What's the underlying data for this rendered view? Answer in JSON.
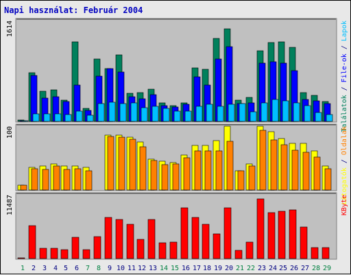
{
  "title": "Napi használat: Február 2004",
  "colors": {
    "background": "#e8e8e8",
    "panel": "#c0c0c0",
    "title": "#0000c0",
    "weekday": "#000080",
    "weekend": "#008040",
    "hits": "#00805c",
    "files": "#0000ff",
    "pages": "#00c0ff",
    "visits": "#ffff00",
    "sites": "#ff8000",
    "kbytes": "#ff0000"
  },
  "chart_data": {
    "type": "bar",
    "categories": [
      "1",
      "2",
      "3",
      "4",
      "5",
      "6",
      "7",
      "8",
      "9",
      "10",
      "11",
      "12",
      "13",
      "14",
      "15",
      "16",
      "17",
      "18",
      "19",
      "20",
      "21",
      "22",
      "23",
      "24",
      "25",
      "26",
      "27",
      "28",
      "29"
    ],
    "weekend_days": [
      "1",
      "7",
      "8",
      "14",
      "15",
      "21",
      "22",
      "28",
      "29"
    ],
    "panels": [
      {
        "id": "top",
        "ymax_label": "1614",
        "ymax": 1614,
        "right_label_segments": [
          {
            "text": "Találatok",
            "color": "#00805c"
          },
          {
            "text": " / ",
            "color": "#000080"
          },
          {
            "text": "File-ok",
            "color": "#0000ff"
          },
          {
            "text": " / ",
            "color": "#000080"
          },
          {
            "text": "Lapok",
            "color": "#00c0ff"
          }
        ],
        "series": [
          {
            "name": "Találatok",
            "color": "#00805c",
            "values": [
              20,
              780,
              480,
              500,
              340,
              1270,
              210,
              1000,
              850,
              1070,
              450,
              460,
              520,
              300,
              250,
              300,
              860,
              830,
              1330,
              1480,
              340,
              380,
              1130,
              1260,
              1270,
              1190,
              460,
              420,
              320
            ]
          },
          {
            "name": "File-ok",
            "color": "#0000ff",
            "values": [
              15,
              740,
              370,
              400,
              320,
              580,
              180,
              720,
              850,
              790,
              390,
              360,
              430,
              250,
              230,
              270,
              710,
              580,
              1000,
              1200,
              290,
              300,
              930,
              950,
              930,
              810,
              350,
              330,
              280
            ]
          },
          {
            "name": "Lapok",
            "color": "#00c0ff",
            "values": [
              10,
              120,
              120,
              120,
              110,
              170,
              100,
              290,
              310,
              290,
              300,
              220,
              240,
              210,
              160,
              160,
              240,
              270,
              240,
              270,
              290,
              150,
              300,
              350,
              330,
              300,
              250,
              140,
              110
            ]
          }
        ]
      },
      {
        "id": "middle",
        "ymax_label": "100",
        "ymax": 100,
        "right_label_segments": [
          {
            "text": "Látogatók",
            "color": "#ffff00"
          },
          {
            "text": " / ",
            "color": "#000080"
          },
          {
            "text": "Oldalak",
            "color": "#ff8000"
          }
        ],
        "series": [
          {
            "name": "Látogatók",
            "color": "#ffff00",
            "values": [
              7,
              35,
              38,
              41,
              38,
              38,
              35,
              0,
              86,
              86,
              83,
              75,
              48,
              45,
              43,
              55,
              70,
              70,
              77,
              100,
              30,
              41,
              100,
              91,
              81,
              73,
              73,
              61,
              38
            ]
          },
          {
            "name": "Oldalak",
            "color": "#ff8000",
            "values": [
              7,
              33,
              32,
              38,
              32,
              33,
              30,
              0,
              84,
              83,
              80,
              68,
              46,
              40,
              41,
              51,
              61,
              61,
              61,
              76,
              30,
              38,
              94,
              79,
              71,
              62,
              59,
              52,
              33
            ]
          }
        ]
      },
      {
        "id": "bottom",
        "ymax_label": "11487",
        "ymax": 11487,
        "right_label_segments": [
          {
            "text": "KByte",
            "color": "#ff0000"
          }
        ],
        "series": [
          {
            "name": "KByte",
            "color": "#ff0000",
            "values": [
              110,
              5950,
              1870,
              1870,
              1600,
              3850,
              1650,
              3900,
              7370,
              7100,
              6200,
              3400,
              6980,
              2800,
              2950,
              9200,
              7370,
              6200,
              4400,
              9200,
              1430,
              2950,
              10800,
              8300,
              8500,
              8800,
              5700,
              2000,
              2000
            ]
          }
        ]
      }
    ]
  }
}
